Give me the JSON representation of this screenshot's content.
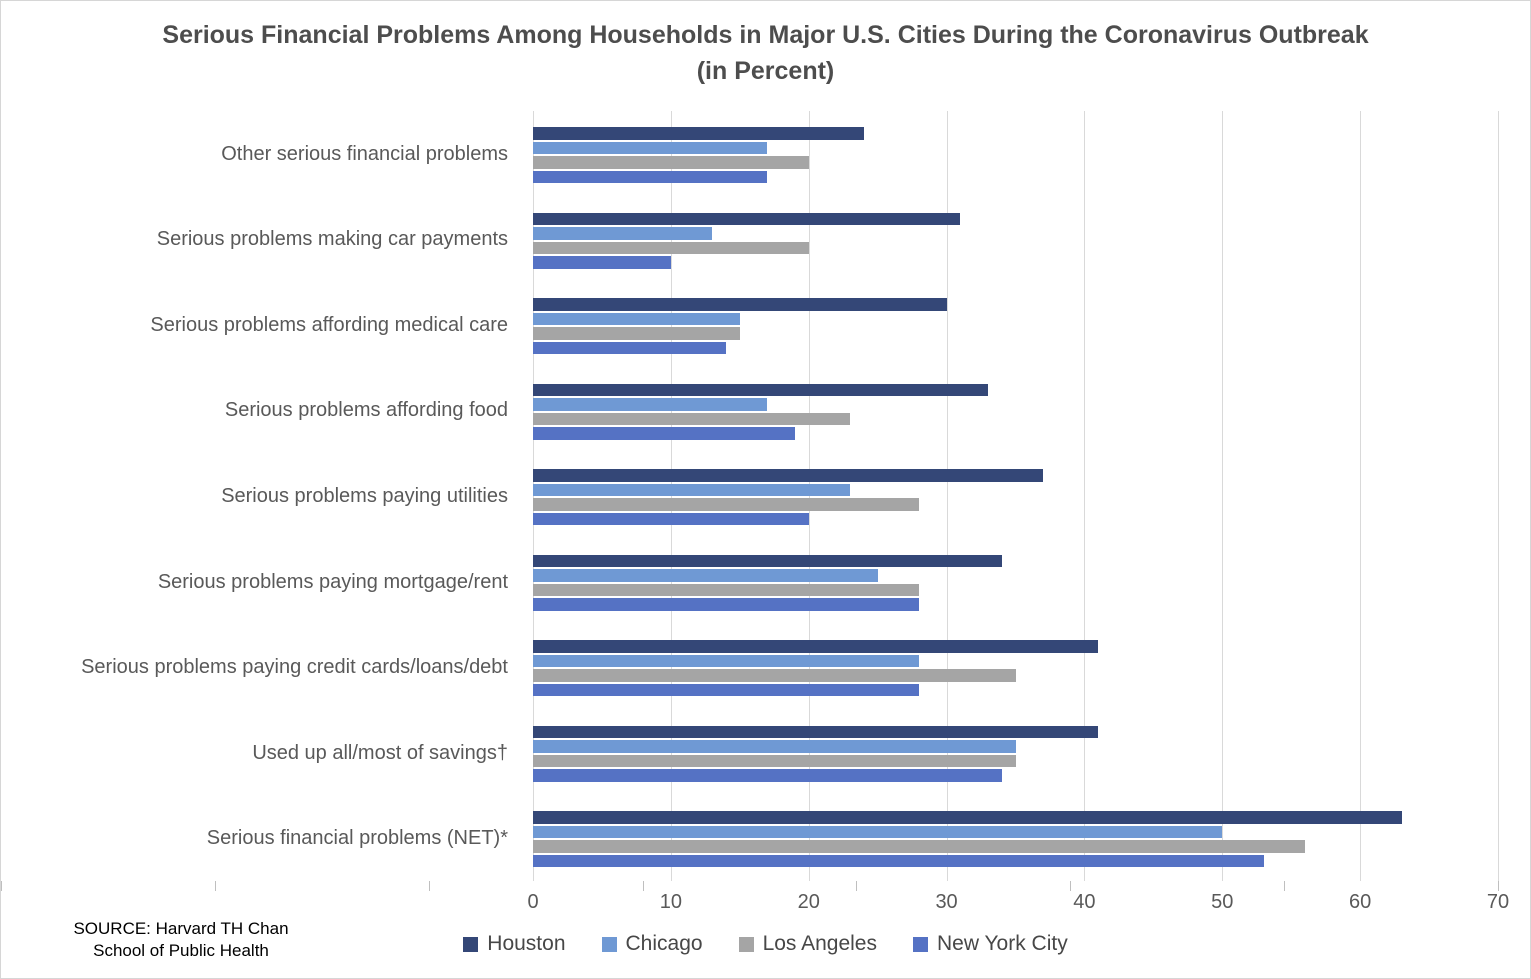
{
  "title": {
    "line1": "Serious Financial Problems Among Households in Major U.S. Cities During the Coronavirus Outbreak",
    "line2": "(in Percent)"
  },
  "source": {
    "line1": "SOURCE: Harvard TH Chan",
    "line2": "School of Public Health"
  },
  "chart_data": {
    "type": "bar",
    "orientation": "horizontal",
    "title": "Serious Financial Problems Among Households in Major U.S. Cities During the Coronavirus Outbreak (in Percent)",
    "categories": [
      "Other serious financial problems",
      "Serious problems making car payments",
      "Serious problems affording medical care",
      "Serious problems affording food",
      "Serious problems paying utilities",
      "Serious problems paying mortgage/rent",
      "Serious problems paying credit cards/loans/debt",
      "Used up all/most of savings†",
      "Serious financial problems (NET)*"
    ],
    "series": [
      {
        "name": "Houston",
        "color": "#344777",
        "values": [
          24,
          31,
          30,
          33,
          37,
          34,
          41,
          41,
          63
        ]
      },
      {
        "name": "Chicago",
        "color": "#6F99D4",
        "values": [
          17,
          13,
          15,
          17,
          23,
          25,
          28,
          35,
          50
        ]
      },
      {
        "name": "Los Angeles",
        "color": "#A5A5A5",
        "values": [
          20,
          20,
          15,
          23,
          28,
          28,
          35,
          35,
          56
        ]
      },
      {
        "name": "New York City",
        "color": "#5572C4",
        "values": [
          17,
          10,
          14,
          19,
          20,
          28,
          28,
          34,
          53
        ]
      }
    ],
    "x_axis": {
      "min": 0,
      "max": 70,
      "tick_step": 10,
      "tick_labels": [
        "0",
        "10",
        "20",
        "30",
        "40",
        "50",
        "60",
        "70"
      ]
    },
    "grid": "vertical-gridlines",
    "legend_position": "bottom",
    "colors": {
      "gridline": "#D9D9D9",
      "axis_text": "#595959",
      "title_text": "#4D4D4D"
    }
  }
}
